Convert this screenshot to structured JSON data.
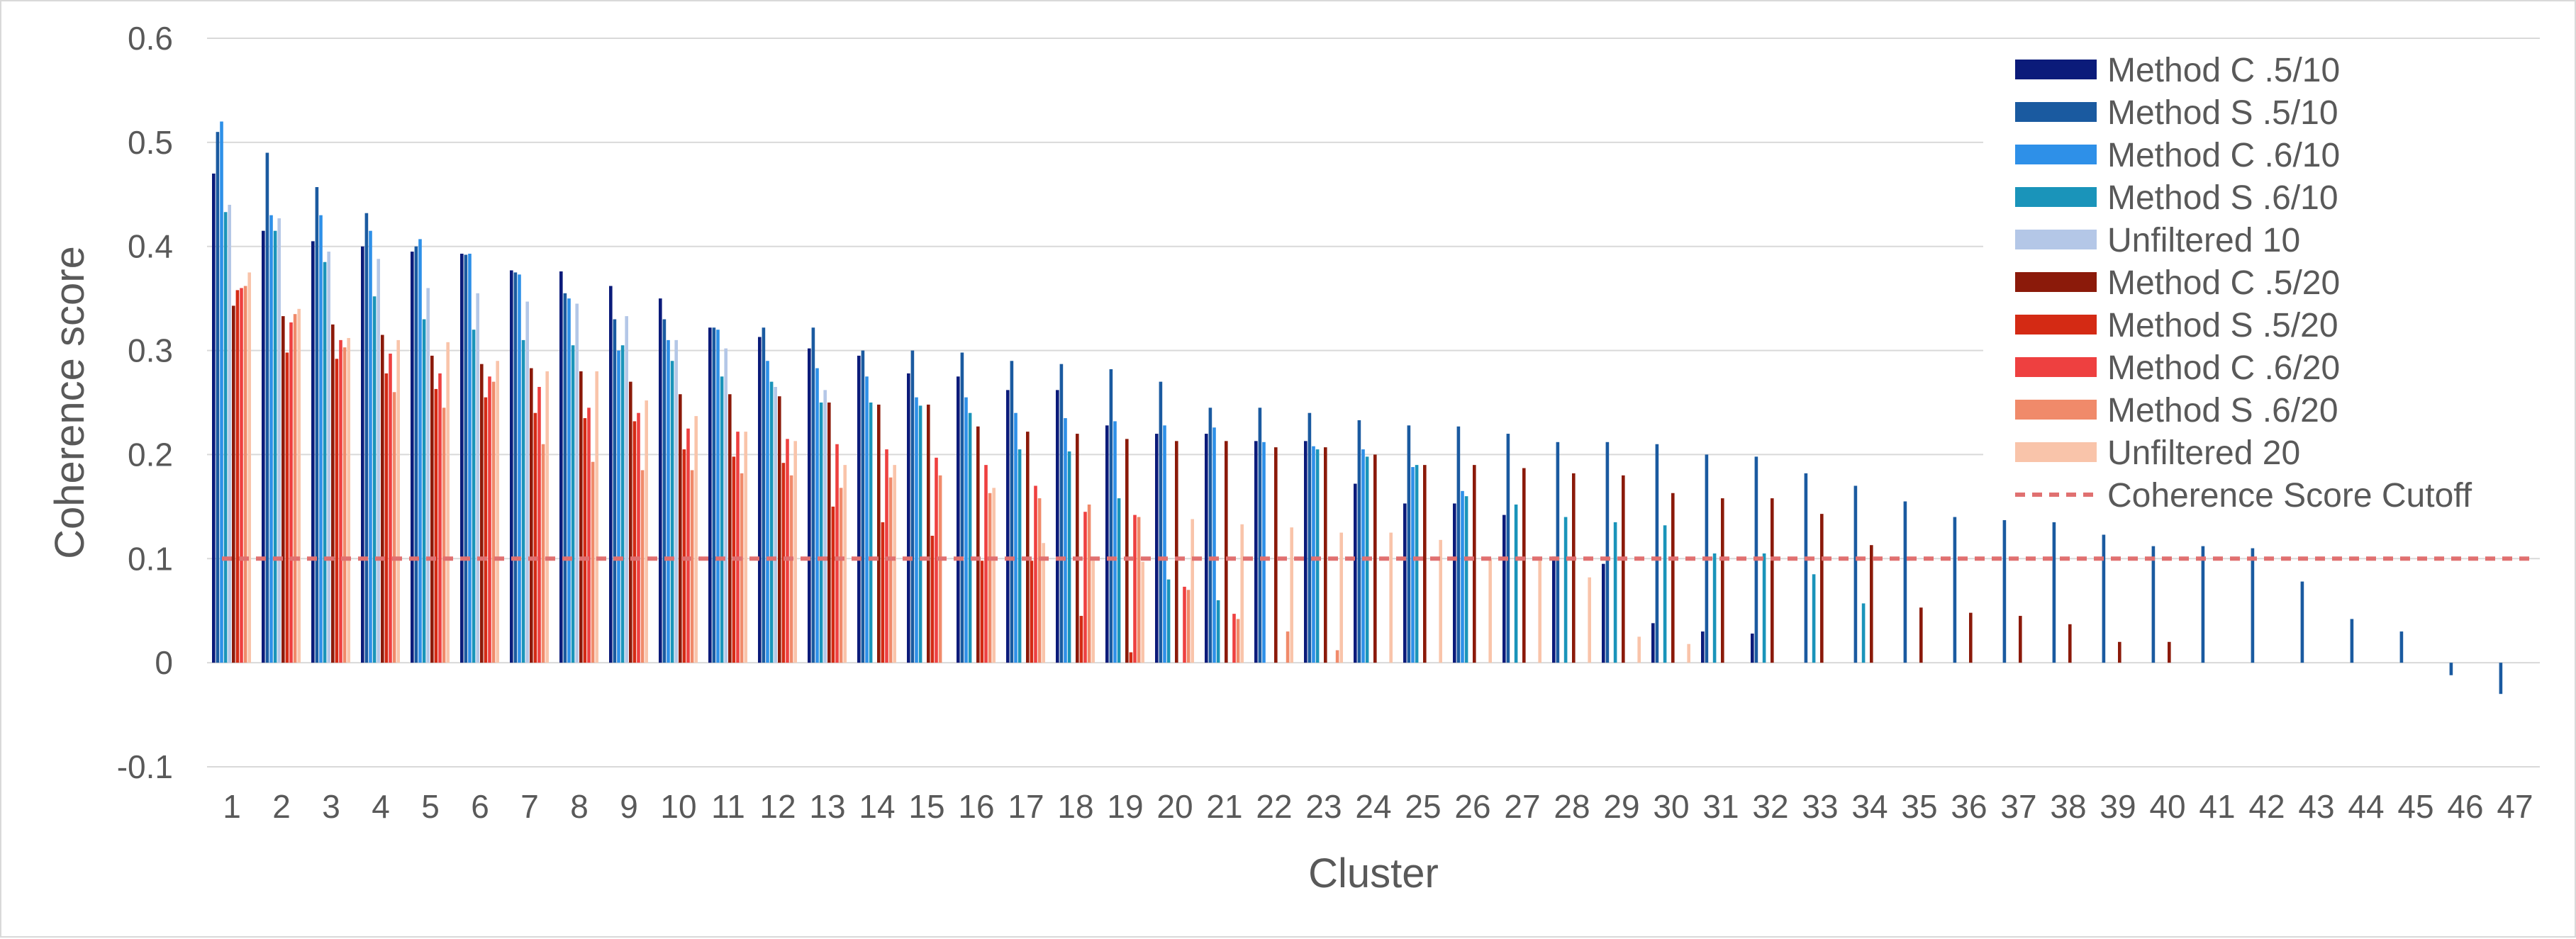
{
  "chart_data": {
    "type": "bar",
    "xlabel": "Cluster",
    "ylabel": "Coherence score",
    "ylim": [
      -0.1,
      0.6
    ],
    "yticks": [
      -0.1,
      0,
      0.1,
      0.2,
      0.3,
      0.4,
      0.5,
      0.6
    ],
    "ytick_labels": [
      "-0.1",
      "0",
      "0.1",
      "0.2",
      "0.3",
      "0.4",
      "0.5",
      "0.6"
    ],
    "grid": true,
    "legend_position": "top-right",
    "categories": [
      "1",
      "2",
      "3",
      "4",
      "5",
      "6",
      "7",
      "8",
      "9",
      "10",
      "11",
      "12",
      "13",
      "14",
      "15",
      "16",
      "17",
      "18",
      "19",
      "20",
      "21",
      "22",
      "23",
      "24",
      "25",
      "26",
      "27",
      "28",
      "29",
      "30",
      "31",
      "32",
      "33",
      "34",
      "35",
      "36",
      "37",
      "38",
      "39",
      "40",
      "41",
      "42",
      "43",
      "44",
      "45",
      "46",
      "47"
    ],
    "series": [
      {
        "name": "Method C .5/10",
        "color": "#0b1b7a",
        "values": [
          0.47,
          0.415,
          0.405,
          0.4,
          0.395,
          0.393,
          0.377,
          0.376,
          0.362,
          0.35,
          0.322,
          0.313,
          0.302,
          0.295,
          0.278,
          0.275,
          0.262,
          0.262,
          0.228,
          0.22,
          0.22,
          0.213,
          0.213,
          0.172,
          0.153,
          0.153,
          0.142,
          0.102,
          0.095,
          0.038,
          0.03,
          0.028,
          null,
          null,
          null,
          null,
          null,
          null,
          null,
          null,
          null,
          null,
          null,
          null,
          null,
          null,
          null
        ]
      },
      {
        "name": "Method S .5/10",
        "color": "#1a5aa0",
        "values": [
          0.51,
          0.49,
          0.457,
          0.432,
          0.4,
          0.392,
          0.375,
          0.355,
          0.33,
          0.33,
          0.322,
          0.322,
          0.322,
          0.3,
          0.3,
          0.298,
          0.29,
          0.287,
          0.282,
          0.27,
          0.245,
          0.245,
          0.24,
          0.233,
          0.228,
          0.227,
          0.22,
          0.212,
          0.212,
          0.21,
          0.2,
          0.198,
          0.182,
          0.17,
          0.155,
          0.14,
          0.137,
          0.135,
          0.123,
          0.112,
          0.112,
          0.11,
          0.078,
          0.042,
          0.03,
          -0.012,
          -0.03
        ]
      },
      {
        "name": "Method C .6/10",
        "color": "#2e90e8",
        "values": [
          0.52,
          0.43,
          0.43,
          0.415,
          0.407,
          0.393,
          0.373,
          0.35,
          0.3,
          0.31,
          0.32,
          0.29,
          0.283,
          0.275,
          0.255,
          0.255,
          0.24,
          0.235,
          0.232,
          0.228,
          0.226,
          0.212,
          0.208,
          0.205,
          0.188,
          0.165,
          null,
          null,
          null,
          null,
          null,
          null,
          null,
          null,
          null,
          null,
          null,
          null,
          null,
          null,
          null,
          null,
          null,
          null,
          null,
          null,
          null
        ]
      },
      {
        "name": "Method S .6/10",
        "color": "#1a94ba",
        "values": [
          0.433,
          0.415,
          0.385,
          0.352,
          0.33,
          0.32,
          0.31,
          0.305,
          0.305,
          0.29,
          0.275,
          0.27,
          0.25,
          0.25,
          0.247,
          0.24,
          0.205,
          0.203,
          0.158,
          0.08,
          0.06,
          null,
          0.205,
          0.198,
          0.19,
          0.16,
          0.152,
          0.14,
          0.135,
          0.132,
          0.105,
          0.105,
          0.085,
          0.057,
          null,
          null,
          null,
          null,
          null,
          null,
          null,
          null,
          null,
          null,
          null,
          null,
          null
        ]
      },
      {
        "name": "Unfiltered 10",
        "color": "#b4c7e7",
        "values": [
          0.44,
          0.427,
          0.395,
          0.388,
          0.36,
          0.355,
          0.347,
          0.345,
          0.333,
          0.31,
          0.302,
          0.265,
          0.262,
          null,
          null,
          null,
          null,
          null,
          null,
          null,
          null,
          null,
          null,
          null,
          null,
          null,
          null,
          null,
          null,
          null,
          null,
          null,
          null,
          null,
          null,
          null,
          null,
          null,
          null,
          null,
          null,
          null,
          null,
          null,
          null,
          null,
          null
        ]
      },
      {
        "name": "Method C .5/20",
        "color": "#8b1a0a",
        "values": [
          0.343,
          0.333,
          0.325,
          0.315,
          0.295,
          0.287,
          0.283,
          0.28,
          0.27,
          0.258,
          0.258,
          0.256,
          0.25,
          0.248,
          0.248,
          0.227,
          0.222,
          0.22,
          0.215,
          0.213,
          0.213,
          0.207,
          0.207,
          0.2,
          0.19,
          0.19,
          0.187,
          0.182,
          0.18,
          0.163,
          0.158,
          0.158,
          0.143,
          0.113,
          0.053,
          0.048,
          0.045,
          0.037,
          0.02,
          0.02,
          null,
          null,
          null,
          null,
          null,
          null,
          null
        ]
      },
      {
        "name": "Method S .5/20",
        "color": "#d42a14",
        "values": [
          0.358,
          0.298,
          0.292,
          0.278,
          0.263,
          0.255,
          0.24,
          0.235,
          0.232,
          0.205,
          0.198,
          0.192,
          0.15,
          0.135,
          0.122,
          0.098,
          0.098,
          0.045,
          0.01,
          null,
          null,
          null,
          null,
          null,
          null,
          null,
          null,
          null,
          null,
          null,
          null,
          null,
          null,
          null,
          null,
          null,
          null,
          null,
          null,
          null,
          null,
          null,
          null,
          null,
          null,
          null,
          null
        ]
      },
      {
        "name": "Method C .6/20",
        "color": "#ee4040",
        "values": [
          0.36,
          0.327,
          0.31,
          0.297,
          0.278,
          0.275,
          0.265,
          0.245,
          0.24,
          0.225,
          0.222,
          0.215,
          0.21,
          0.205,
          0.197,
          0.19,
          0.17,
          0.145,
          0.142,
          0.073,
          0.047,
          null,
          null,
          null,
          null,
          null,
          null,
          null,
          null,
          null,
          null,
          null,
          null,
          null,
          null,
          null,
          null,
          null,
          null,
          null,
          null,
          null,
          null,
          null,
          null,
          null,
          null
        ]
      },
      {
        "name": "Method S .6/20",
        "color": "#f08a6a",
        "values": [
          0.362,
          0.335,
          0.303,
          0.26,
          0.245,
          0.27,
          0.21,
          0.193,
          0.185,
          0.185,
          0.182,
          0.18,
          0.168,
          0.178,
          0.18,
          0.163,
          0.158,
          0.152,
          0.14,
          0.07,
          0.042,
          0.03,
          0.012,
          null,
          null,
          null,
          null,
          null,
          null,
          null,
          null,
          null,
          null,
          null,
          null,
          null,
          null,
          null,
          null,
          null,
          null,
          null,
          null,
          null,
          null,
          null,
          null
        ]
      },
      {
        "name": "Unfiltered 20",
        "color": "#f9c4aa",
        "values": [
          0.375,
          0.34,
          0.312,
          0.31,
          0.308,
          0.29,
          0.28,
          0.28,
          0.252,
          0.237,
          0.222,
          0.213,
          0.19,
          0.19,
          null,
          0.168,
          0.115,
          0.098,
          0.097,
          0.138,
          0.133,
          0.13,
          0.125,
          0.125,
          0.118,
          0.1,
          0.098,
          0.082,
          0.025,
          0.018,
          null,
          null,
          null,
          null,
          null,
          null,
          null,
          null,
          null,
          null,
          null,
          null,
          null,
          null,
          null,
          null,
          null
        ]
      }
    ],
    "reference_line": {
      "name": "Coherence Score Cutoff",
      "value": 0.1,
      "color": "#e07070",
      "style": "dashed"
    }
  }
}
